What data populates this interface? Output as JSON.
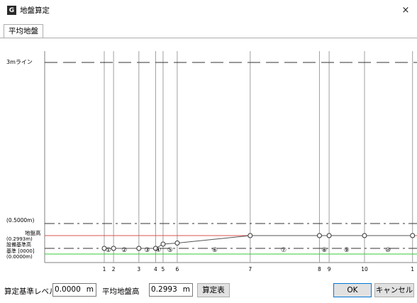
{
  "window": {
    "title": "地盤算定",
    "app_icon_letter": "G",
    "close_glyph": "×"
  },
  "tabs": [
    {
      "label": "平均地盤"
    }
  ],
  "chart_data": {
    "type": "line",
    "y_labels": {
      "line3m": "3mライン",
      "line05": "(0.5000m)",
      "ground_label": "地盤高",
      "ground_value": "(0.2993m)",
      "design": "設備基準高",
      "base": "基準 [0000]",
      "zero": "(0.0000m)"
    },
    "x_ticks": [
      "1",
      "2",
      "3",
      "4",
      "5",
      "6",
      "7",
      "8",
      "9",
      "10",
      "1"
    ],
    "tick_x": [
      0.16,
      0.185,
      0.253,
      0.298,
      0.318,
      0.356,
      0.552,
      0.738,
      0.764,
      0.859,
      0.988
    ],
    "profile_x": [
      0.16,
      0.185,
      0.253,
      0.298,
      0.318,
      0.356,
      0.552,
      0.738,
      0.764,
      0.859,
      0.988
    ],
    "profile_y": [
      0.0,
      0.0,
      0.0,
      0.0,
      0.04,
      0.05,
      0.12,
      0.12,
      0.12,
      0.12,
      0.12
    ],
    "segment_labels": [
      "①",
      "②",
      "③",
      "④",
      "⑤",
      "⑥",
      "⑦",
      "⑧",
      "⑨",
      "⑩"
    ],
    "segment_x": [
      0.171,
      0.214,
      0.275,
      0.305,
      0.337,
      0.457,
      0.642,
      0.751,
      0.811,
      0.922
    ],
    "ref_lines": {
      "line3m": 3.0,
      "line05": 0.5,
      "ground": 0.2993,
      "design": 0.0,
      "green": -0.1
    },
    "colors": {
      "ground": "#d9534f",
      "green": "#39c839",
      "profile": "#555555",
      "dash": "#333333"
    }
  },
  "footer": {
    "calc_base_label": "算定基準レベル",
    "calc_base_value": "0.0000",
    "calc_base_unit": "m",
    "avg_label": "平均地盤高",
    "avg_value": "0.2993",
    "avg_unit": "m",
    "table_button": "算定表",
    "ok_button": "OK",
    "cancel_button": "キャンセル"
  }
}
